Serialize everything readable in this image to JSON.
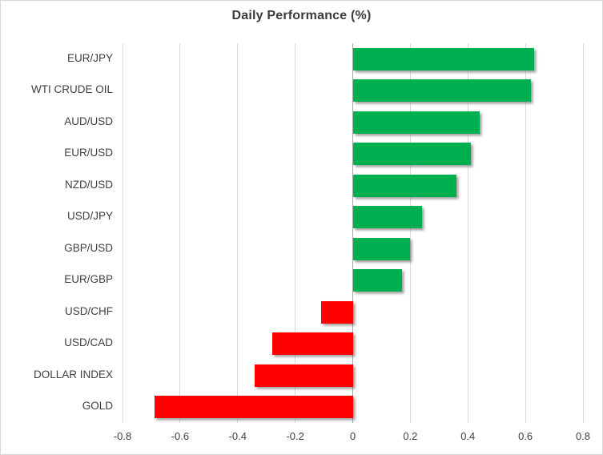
{
  "chart_data": {
    "type": "bar",
    "orientation": "horizontal",
    "title": "Daily Performance (%)",
    "categories": [
      "EUR/JPY",
      "WTI CRUDE OIL",
      "AUD/USD",
      "EUR/USD",
      "NZD/USD",
      "USD/JPY",
      "GBP/USD",
      "EUR/GBP",
      "USD/CHF",
      "USD/CAD",
      "DOLLAR INDEX",
      "GOLD"
    ],
    "values": [
      0.63,
      0.62,
      0.44,
      0.41,
      0.36,
      0.24,
      0.2,
      0.17,
      -0.11,
      -0.28,
      -0.34,
      -0.69
    ],
    "xlabel": "",
    "ylabel": "",
    "xlim": [
      -0.8,
      0.8
    ],
    "xticks": [
      -0.8,
      -0.6,
      -0.4,
      -0.2,
      0,
      0.2,
      0.4,
      0.6,
      0.8
    ],
    "xtick_labels": [
      "-0.8",
      "-0.6",
      "-0.4",
      "-0.2",
      "0",
      "0.2",
      "0.4",
      "0.6",
      "0.8"
    ],
    "grid": true,
    "legend": false,
    "colors": {
      "positive": "#00B050",
      "negative": "#FF0000",
      "gridline": "#D9D9D9",
      "zero_axis": "#A6A6A6",
      "text": "#404040",
      "background": "#FFFFFF",
      "border": "#D9D9D9"
    }
  }
}
